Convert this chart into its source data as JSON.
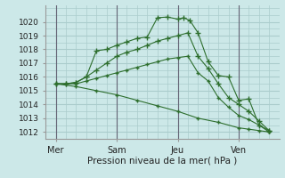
{
  "bg_color": "#cce8e8",
  "grid_color": "#aacccc",
  "line_color": "#2d6e2d",
  "marker_color": "#2d6e2d",
  "xlabel": "Pression niveau de la mer( hPa )",
  "ylim": [
    1011.5,
    1021.2
  ],
  "yticks": [
    1012,
    1013,
    1014,
    1015,
    1016,
    1017,
    1018,
    1019,
    1020
  ],
  "day_labels": [
    "Mer",
    "Sam",
    "Jeu",
    "Ven"
  ],
  "day_positions": [
    0,
    3,
    6,
    9
  ],
  "series": [
    {
      "x": [
        0,
        0.5,
        1.0,
        1.5,
        2.0,
        2.5,
        3.0,
        3.5,
        4.0,
        4.5,
        5.0,
        5.5,
        6.0,
        6.3,
        6.6,
        7.0,
        7.5,
        8.0,
        8.5,
        9.0,
        9.5,
        10.0,
        10.5
      ],
      "y": [
        1015.5,
        1015.5,
        1015.6,
        1016.0,
        1017.9,
        1018.0,
        1018.3,
        1018.55,
        1018.8,
        1018.9,
        1020.3,
        1020.35,
        1020.2,
        1020.3,
        1020.1,
        1019.2,
        1017.1,
        1016.1,
        1016.0,
        1014.3,
        1014.4,
        1012.5,
        1012.1
      ],
      "marker": "+",
      "markersize": 5
    },
    {
      "x": [
        0,
        0.5,
        1.0,
        1.5,
        2.0,
        2.5,
        3.0,
        3.5,
        4.0,
        4.5,
        5.0,
        5.5,
        6.0,
        6.5,
        7.0,
        7.5,
        8.0,
        8.5,
        9.0,
        9.5,
        10.0,
        10.5
      ],
      "y": [
        1015.5,
        1015.5,
        1015.6,
        1016.0,
        1016.5,
        1017.0,
        1017.5,
        1017.8,
        1018.0,
        1018.3,
        1018.6,
        1018.8,
        1019.0,
        1019.2,
        1017.5,
        1016.6,
        1015.5,
        1014.5,
        1014.0,
        1013.5,
        1012.8,
        1012.1
      ],
      "marker": "+",
      "markersize": 4
    },
    {
      "x": [
        0,
        0.5,
        1.0,
        1.5,
        2.0,
        2.5,
        3.0,
        3.5,
        4.0,
        4.5,
        5.0,
        5.5,
        6.0,
        6.5,
        7.0,
        7.5,
        8.0,
        8.5,
        9.0,
        9.5,
        10.0,
        10.5
      ],
      "y": [
        1015.5,
        1015.5,
        1015.5,
        1015.7,
        1015.9,
        1016.1,
        1016.3,
        1016.5,
        1016.7,
        1016.9,
        1017.1,
        1017.3,
        1017.4,
        1017.5,
        1016.3,
        1015.7,
        1014.5,
        1013.8,
        1013.2,
        1012.9,
        1012.5,
        1012.0
      ],
      "marker": "+",
      "markersize": 3
    },
    {
      "x": [
        0,
        1.0,
        2.0,
        3.0,
        4.0,
        5.0,
        6.0,
        7.0,
        8.0,
        9.0,
        9.5,
        10.0,
        10.5
      ],
      "y": [
        1015.5,
        1015.3,
        1015.0,
        1014.7,
        1014.3,
        1013.9,
        1013.5,
        1013.0,
        1012.7,
        1012.3,
        1012.2,
        1012.1,
        1012.0
      ],
      "marker": "+",
      "markersize": 3
    }
  ],
  "xlim": [
    -0.5,
    11.0
  ],
  "vline_positions": [
    0,
    3,
    6,
    9
  ],
  "vline_color": "#666677"
}
